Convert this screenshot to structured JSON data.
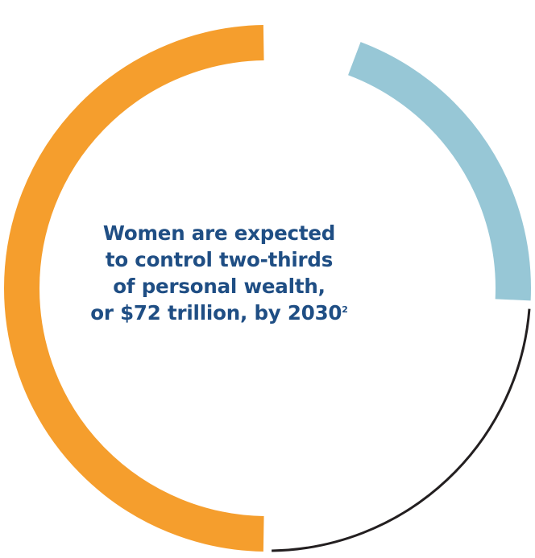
{
  "chart_data": {
    "type": "pie",
    "variant": "donut",
    "segments": [
      {
        "share": 0.055,
        "color": "#ffffff",
        "style": "gap"
      },
      {
        "share": 0.205,
        "color": "#97c7d6",
        "style": "thick-arc"
      },
      {
        "share": 0.24,
        "color": "#231f20",
        "style": "thin-arc"
      },
      {
        "share": 0.5,
        "color": "#f59e2d",
        "style": "thick-arc"
      }
    ],
    "center_text": {
      "lines": [
        "Women are expected",
        "to control two-thirds",
        "of personal wealth,",
        "or $72 trillion, by 2030"
      ],
      "footnote": "2"
    }
  },
  "colors": {
    "text": "#1f4e84",
    "orange": "#f59e2d",
    "light_blue": "#97c7d6",
    "dark": "#231f20"
  }
}
